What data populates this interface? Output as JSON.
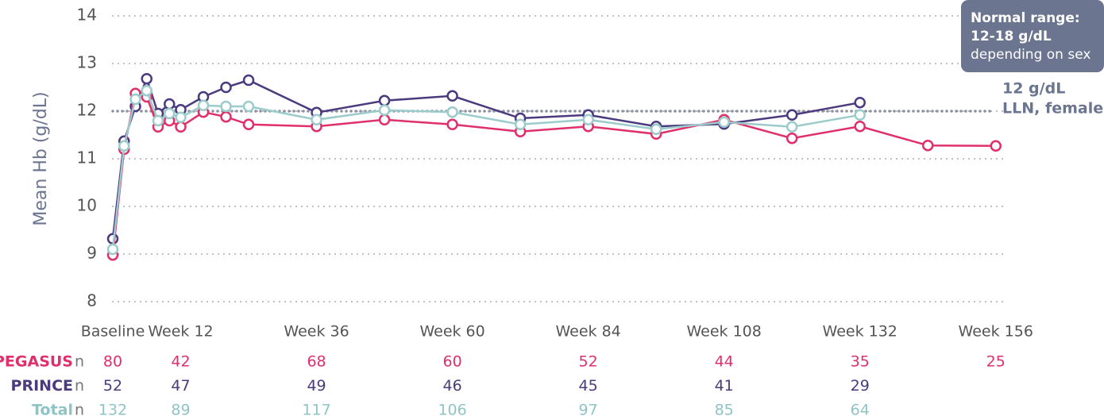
{
  "chart_data": {
    "type": "line",
    "ylabel": "Mean Hb (g/dL)",
    "x": [
      0,
      2,
      4,
      6,
      8,
      10,
      12,
      16,
      20,
      24,
      36,
      48,
      60,
      72,
      84,
      96,
      108,
      120,
      132,
      144,
      156
    ],
    "xlim": [
      0,
      158
    ],
    "xticks": [
      {
        "value": 0,
        "label": "Baseline"
      },
      {
        "value": 12,
        "label": "Week 12"
      },
      {
        "value": 36,
        "label": "Week 36"
      },
      {
        "value": 60,
        "label": "Week 60"
      },
      {
        "value": 84,
        "label": "Week 84"
      },
      {
        "value": 108,
        "label": "Week 108"
      },
      {
        "value": 132,
        "label": "Week 132"
      },
      {
        "value": 156,
        "label": "Week 156"
      }
    ],
    "ylim": [
      8,
      14
    ],
    "yticks": [
      8,
      9,
      10,
      11,
      12,
      13,
      14
    ],
    "grid": true,
    "series": [
      {
        "name": "PRINCE",
        "color": "#4b3a7e",
        "values": [
          9.32,
          11.37,
          12.1,
          12.68,
          11.95,
          12.15,
          12.03,
          12.3,
          12.5,
          12.65,
          11.97,
          12.22,
          12.32,
          11.85,
          11.92,
          11.68,
          11.73,
          11.92,
          12.18,
          null,
          null
        ]
      },
      {
        "name": "PEGASUS",
        "color": "#e0306a",
        "values": [
          8.98,
          11.2,
          12.37,
          12.3,
          11.67,
          11.8,
          11.67,
          11.98,
          11.88,
          11.72,
          11.68,
          11.82,
          11.72,
          11.57,
          11.68,
          11.52,
          11.82,
          11.43,
          11.68,
          11.28,
          11.27
        ]
      },
      {
        "name": "Total",
        "color": "#9ccbcc",
        "values": [
          9.1,
          11.27,
          12.25,
          12.43,
          11.8,
          11.95,
          11.87,
          12.12,
          12.1,
          12.1,
          11.82,
          12.02,
          11.98,
          11.72,
          11.82,
          11.62,
          11.77,
          11.67,
          11.92,
          null,
          null
        ]
      }
    ],
    "reference_line": {
      "value": 12,
      "label_lines": [
        "12 g/dL",
        "LLN, female"
      ]
    },
    "annotation": {
      "lines": [
        "Normal range:",
        "12-18 g/dL",
        "depending on sex"
      ]
    },
    "n_table": {
      "label": "n",
      "rows": [
        {
          "name": "PEGASUS",
          "color": "#e0306a",
          "values": [
            80,
            42,
            68,
            60,
            52,
            44,
            35,
            25
          ]
        },
        {
          "name": "PRINCE",
          "color": "#4b3a7e",
          "values": [
            52,
            47,
            49,
            46,
            45,
            41,
            29,
            null
          ]
        },
        {
          "name": "Total",
          "color": "#8fc4c6",
          "values": [
            132,
            89,
            117,
            106,
            97,
            85,
            64,
            null
          ]
        }
      ]
    }
  }
}
